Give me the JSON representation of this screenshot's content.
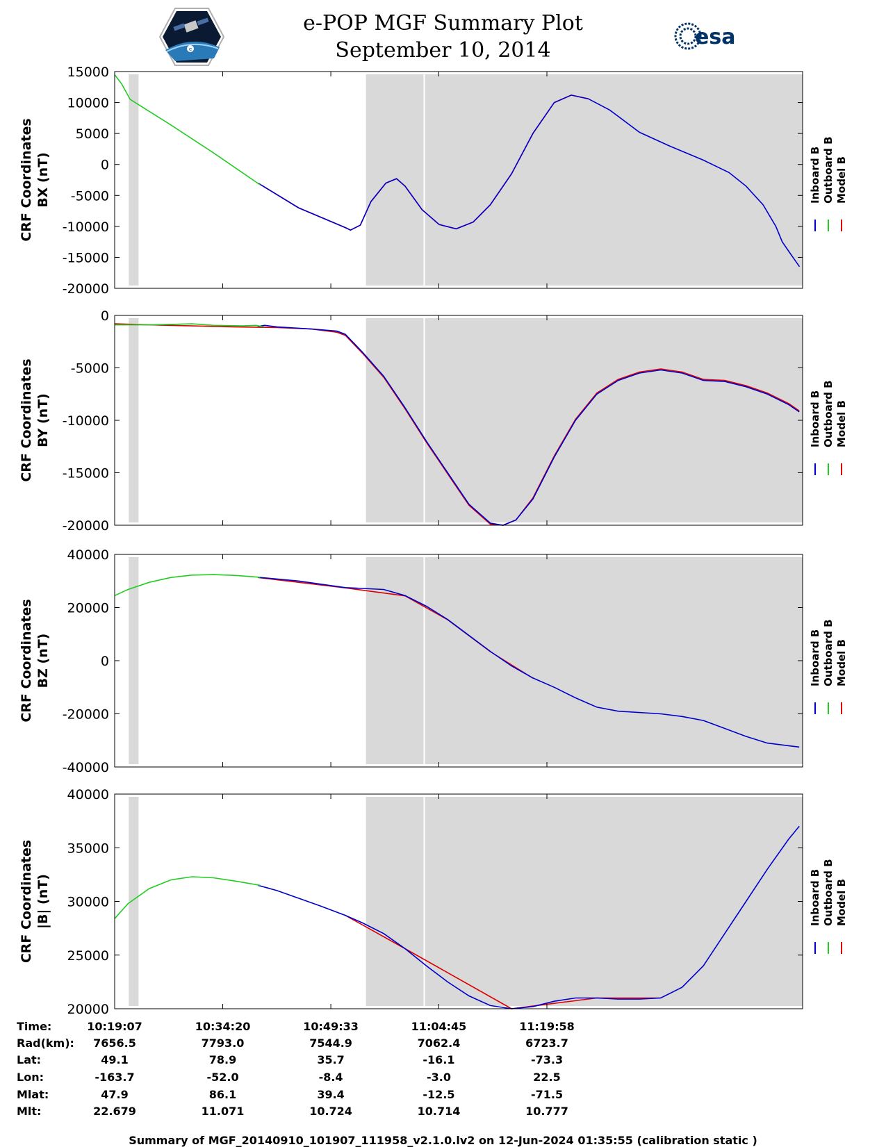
{
  "header": {
    "title": "e-POP MGF Summary Plot",
    "date": "September 10, 2014",
    "logo_left": "e-POP CASSIOPE mission patch",
    "logo_right_text": "esa"
  },
  "colors": {
    "inboard": "#0000cc",
    "outboard": "#22cc22",
    "model": "#dd0000",
    "shade": "#d9d9d9"
  },
  "chart_data": [
    {
      "type": "line",
      "name": "bx",
      "ylabel_top": "CRF Coordinates",
      "ylabel_bottom": "BX (nT)",
      "ylim": [
        -20000,
        15000
      ],
      "yticks": [
        "15000",
        "10000",
        "5000",
        "0",
        "-5000",
        "-10000",
        "-15000",
        "-20000"
      ],
      "ytick_values": [
        15000,
        10000,
        5000,
        0,
        -5000,
        -10000,
        -15000,
        -20000
      ],
      "legend": [
        "Inboard B",
        "Outboard B",
        "Model B"
      ],
      "outboard": [
        [
          10.3186,
          14500
        ],
        [
          10.335,
          13000
        ],
        [
          10.355,
          10500
        ],
        [
          10.45,
          6400
        ],
        [
          10.55,
          1900
        ],
        [
          10.66,
          -3300
        ]
      ],
      "inboard": [
        [
          10.655,
          -3000
        ],
        [
          10.75,
          -7000
        ],
        [
          10.86,
          -10200
        ],
        [
          10.872,
          -10600
        ],
        [
          10.895,
          -9800
        ],
        [
          10.92,
          -6000
        ],
        [
          10.955,
          -3000
        ],
        [
          10.98,
          -2300
        ],
        [
          11.0,
          -3500
        ],
        [
          11.04,
          -7300
        ],
        [
          11.08,
          -9700
        ],
        [
          11.12,
          -10400
        ],
        [
          11.16,
          -9300
        ],
        [
          11.2,
          -6500
        ],
        [
          11.25,
          -1500
        ],
        [
          11.3,
          5000
        ],
        [
          11.35,
          10000
        ],
        [
          11.39,
          11200
        ],
        [
          11.43,
          10600
        ],
        [
          11.48,
          8800
        ],
        [
          11.55,
          5200
        ],
        [
          11.62,
          3000
        ],
        [
          11.7,
          700
        ],
        [
          11.76,
          -1300
        ],
        [
          11.8,
          -3500
        ],
        [
          11.84,
          -6500
        ],
        [
          11.87,
          -10000
        ],
        [
          11.885,
          -12500
        ],
        [
          11.905,
          -14500
        ],
        [
          11.9255,
          -16500
        ]
      ],
      "model": [
        [
          10.655,
          -3000
        ],
        [
          10.75,
          -7000
        ],
        [
          10.86,
          -10200
        ],
        [
          10.872,
          -10600
        ],
        [
          10.895,
          -9800
        ],
        [
          10.92,
          -6000
        ],
        [
          10.955,
          -3000
        ],
        [
          10.98,
          -2300
        ],
        [
          11.0,
          -3500
        ],
        [
          11.04,
          -7300
        ],
        [
          11.08,
          -9700
        ],
        [
          11.12,
          -10400
        ],
        [
          11.16,
          -9300
        ],
        [
          11.2,
          -6500
        ],
        [
          11.25,
          -1500
        ],
        [
          11.3,
          5000
        ],
        [
          11.35,
          10000
        ],
        [
          11.39,
          11200
        ],
        [
          11.43,
          10600
        ]
      ]
    },
    {
      "type": "line",
      "name": "by",
      "ylabel_top": "CRF Coordinates",
      "ylabel_bottom": "BY (nT)",
      "ylim": [
        -20000,
        0
      ],
      "yticks": [
        "0",
        "-5000",
        "-10000",
        "-15000",
        "-20000"
      ],
      "ytick_values": [
        0,
        -5000,
        -10000,
        -15000,
        -20000
      ],
      "legend": [
        "Inboard B",
        "Outboard B",
        "Model B"
      ],
      "outboard": [
        [
          10.3186,
          -900
        ],
        [
          10.4,
          -900
        ],
        [
          10.5,
          -800
        ],
        [
          10.55,
          -950
        ],
        [
          10.62,
          -1000
        ],
        [
          10.65,
          -950
        ],
        [
          10.67,
          -1100
        ]
      ],
      "inboard": [
        [
          10.655,
          -1050
        ],
        [
          10.67,
          -950
        ],
        [
          10.7,
          -1100
        ],
        [
          10.78,
          -1300
        ],
        [
          10.84,
          -1500
        ],
        [
          10.86,
          -1800
        ],
        [
          10.9,
          -3500
        ],
        [
          10.95,
          -5800
        ],
        [
          11.0,
          -8800
        ],
        [
          11.05,
          -12000
        ],
        [
          11.1,
          -15000
        ],
        [
          11.15,
          -18000
        ],
        [
          11.2,
          -19800
        ],
        [
          11.23,
          -20000
        ],
        [
          11.26,
          -19500
        ],
        [
          11.3,
          -17500
        ],
        [
          11.35,
          -13500
        ],
        [
          11.4,
          -10000
        ],
        [
          11.45,
          -7500
        ],
        [
          11.5,
          -6200
        ],
        [
          11.55,
          -5500
        ],
        [
          11.6,
          -5200
        ],
        [
          11.65,
          -5500
        ],
        [
          11.7,
          -6200
        ],
        [
          11.75,
          -6300
        ],
        [
          11.8,
          -6800
        ],
        [
          11.85,
          -7500
        ],
        [
          11.9,
          -8500
        ],
        [
          11.925,
          -9200
        ]
      ],
      "model": [
        [
          10.3186,
          -800
        ],
        [
          10.4,
          -900
        ],
        [
          10.5,
          -1000
        ],
        [
          10.6,
          -1100
        ],
        [
          10.7,
          -1150
        ],
        [
          10.78,
          -1300
        ],
        [
          10.84,
          -1600
        ],
        [
          10.86,
          -1900
        ],
        [
          10.9,
          -3600
        ],
        [
          10.95,
          -5900
        ],
        [
          11.0,
          -8900
        ],
        [
          11.05,
          -12100
        ],
        [
          11.1,
          -15100
        ],
        [
          11.15,
          -18100
        ],
        [
          11.2,
          -19900
        ],
        [
          11.23,
          -20000
        ],
        [
          11.26,
          -19500
        ],
        [
          11.3,
          -17400
        ],
        [
          11.35,
          -13400
        ],
        [
          11.4,
          -9900
        ],
        [
          11.45,
          -7400
        ],
        [
          11.5,
          -6100
        ],
        [
          11.55,
          -5400
        ],
        [
          11.6,
          -5100
        ],
        [
          11.65,
          -5400
        ],
        [
          11.7,
          -6100
        ],
        [
          11.75,
          -6200
        ],
        [
          11.8,
          -6700
        ],
        [
          11.85,
          -7400
        ],
        [
          11.9,
          -8400
        ],
        [
          11.925,
          -9100
        ]
      ]
    },
    {
      "type": "line",
      "name": "bz",
      "ylabel_top": "CRF Coordinates",
      "ylabel_bottom": "BZ (nT)",
      "ylim": [
        -40000,
        40000
      ],
      "yticks": [
        "40000",
        "20000",
        "0",
        "-20000",
        "-40000"
      ],
      "ytick_values": [
        40000,
        20000,
        0,
        -20000,
        -40000
      ],
      "legend": [
        "Inboard B",
        "Outboard B",
        "Model B"
      ],
      "outboard": [
        [
          10.3186,
          24500
        ],
        [
          10.35,
          26800
        ],
        [
          10.4,
          29500
        ],
        [
          10.45,
          31300
        ],
        [
          10.5,
          32200
        ],
        [
          10.55,
          32400
        ],
        [
          10.6,
          32100
        ],
        [
          10.66,
          31400
        ]
      ],
      "inboard": [
        [
          10.655,
          31400
        ],
        [
          10.75,
          30000
        ],
        [
          10.86,
          27500
        ],
        [
          10.9,
          27200
        ],
        [
          10.95,
          26800
        ],
        [
          11.0,
          24500
        ],
        [
          11.05,
          20500
        ],
        [
          11.1,
          15500
        ],
        [
          11.15,
          9500
        ],
        [
          11.2,
          3500
        ],
        [
          11.25,
          -2000
        ],
        [
          11.3,
          -6500
        ],
        [
          11.35,
          -10000
        ],
        [
          11.4,
          -14000
        ],
        [
          11.45,
          -17500
        ],
        [
          11.5,
          -19000
        ],
        [
          11.6,
          -20000
        ],
        [
          11.65,
          -21000
        ],
        [
          11.7,
          -22500
        ],
        [
          11.75,
          -25500
        ],
        [
          11.8,
          -28500
        ],
        [
          11.85,
          -31000
        ],
        [
          11.9,
          -32000
        ],
        [
          11.925,
          -32500
        ]
      ],
      "model": [
        [
          10.655,
          31300
        ],
        [
          10.86,
          27400
        ],
        [
          11.0,
          24400
        ],
        [
          11.1,
          15400
        ],
        [
          11.2,
          3400
        ],
        [
          11.3,
          -6600
        ]
      ]
    },
    {
      "type": "line",
      "name": "bmag",
      "ylabel_top": "CRF Coordinates",
      "ylabel_bottom": "|B| (nT)",
      "ylim": [
        20000,
        40000
      ],
      "yticks": [
        "40000",
        "35000",
        "30000",
        "25000",
        "20000"
      ],
      "ytick_values": [
        40000,
        35000,
        30000,
        25000,
        20000
      ],
      "legend": [
        "Inboard B",
        "Outboard B",
        "Model B"
      ],
      "outboard": [
        [
          10.3186,
          28400
        ],
        [
          10.35,
          29800
        ],
        [
          10.4,
          31200
        ],
        [
          10.45,
          32000
        ],
        [
          10.5,
          32300
        ],
        [
          10.55,
          32200
        ],
        [
          10.6,
          31900
        ],
        [
          10.66,
          31500
        ]
      ],
      "inboard": [
        [
          10.655,
          31500
        ],
        [
          10.7,
          31000
        ],
        [
          10.75,
          30300
        ],
        [
          10.8,
          29600
        ],
        [
          10.86,
          28700
        ],
        [
          10.9,
          28000
        ],
        [
          10.95,
          27000
        ],
        [
          11.0,
          25600
        ],
        [
          11.05,
          24000
        ],
        [
          11.1,
          22500
        ],
        [
          11.15,
          21200
        ],
        [
          11.2,
          20300
        ],
        [
          11.25,
          20000
        ],
        [
          11.3,
          20200
        ],
        [
          11.35,
          20700
        ],
        [
          11.4,
          21000
        ],
        [
          11.45,
          21000
        ],
        [
          11.5,
          20900
        ],
        [
          11.55,
          20900
        ],
        [
          11.6,
          21000
        ],
        [
          11.65,
          22000
        ],
        [
          11.7,
          24000
        ],
        [
          11.75,
          27000
        ],
        [
          11.8,
          30000
        ],
        [
          11.85,
          33000
        ],
        [
          11.9,
          35800
        ],
        [
          11.925,
          37000
        ]
      ],
      "model": [
        [
          10.86,
          28700
        ],
        [
          11.0,
          25600
        ],
        [
          11.25,
          20000
        ],
        [
          11.45,
          21000
        ],
        [
          11.6,
          21000
        ]
      ]
    }
  ],
  "time_axis": {
    "xlim": [
      10.3186,
      11.9328
    ],
    "tick_values": [
      10.3186,
      10.5722,
      10.8258,
      11.0792,
      11.3328
    ],
    "shaded_regions": [
      [
        10.3517,
        10.3747
      ],
      [
        10.9083,
        11.9328
      ]
    ],
    "gap_line": 11.045
  },
  "ephemeris": {
    "row_labels": [
      "Time:",
      "Rad(km):",
      "Lat:",
      "Lon:",
      "Mlat:",
      "Mlt:"
    ],
    "columns": [
      [
        "10:19:07",
        "7656.5",
        "49.1",
        "-163.7",
        "47.9",
        "22.679"
      ],
      [
        "10:34:20",
        "7793.0",
        "78.9",
        "-52.0",
        "86.1",
        "11.071"
      ],
      [
        "10:49:33",
        "7544.9",
        "35.7",
        "-8.4",
        "39.4",
        "10.724"
      ],
      [
        "11:04:45",
        "7062.4",
        "-16.1",
        "-3.0",
        "-12.5",
        "10.714"
      ],
      [
        "11:19:58",
        "6723.7",
        "-73.3",
        "22.5",
        "-71.5",
        "10.777"
      ]
    ]
  },
  "footer": "Summary of MGF_20140910_101907_111958_v2.1.0.lv2 on 12-Jun-2024 01:35:55 (calibration static )"
}
